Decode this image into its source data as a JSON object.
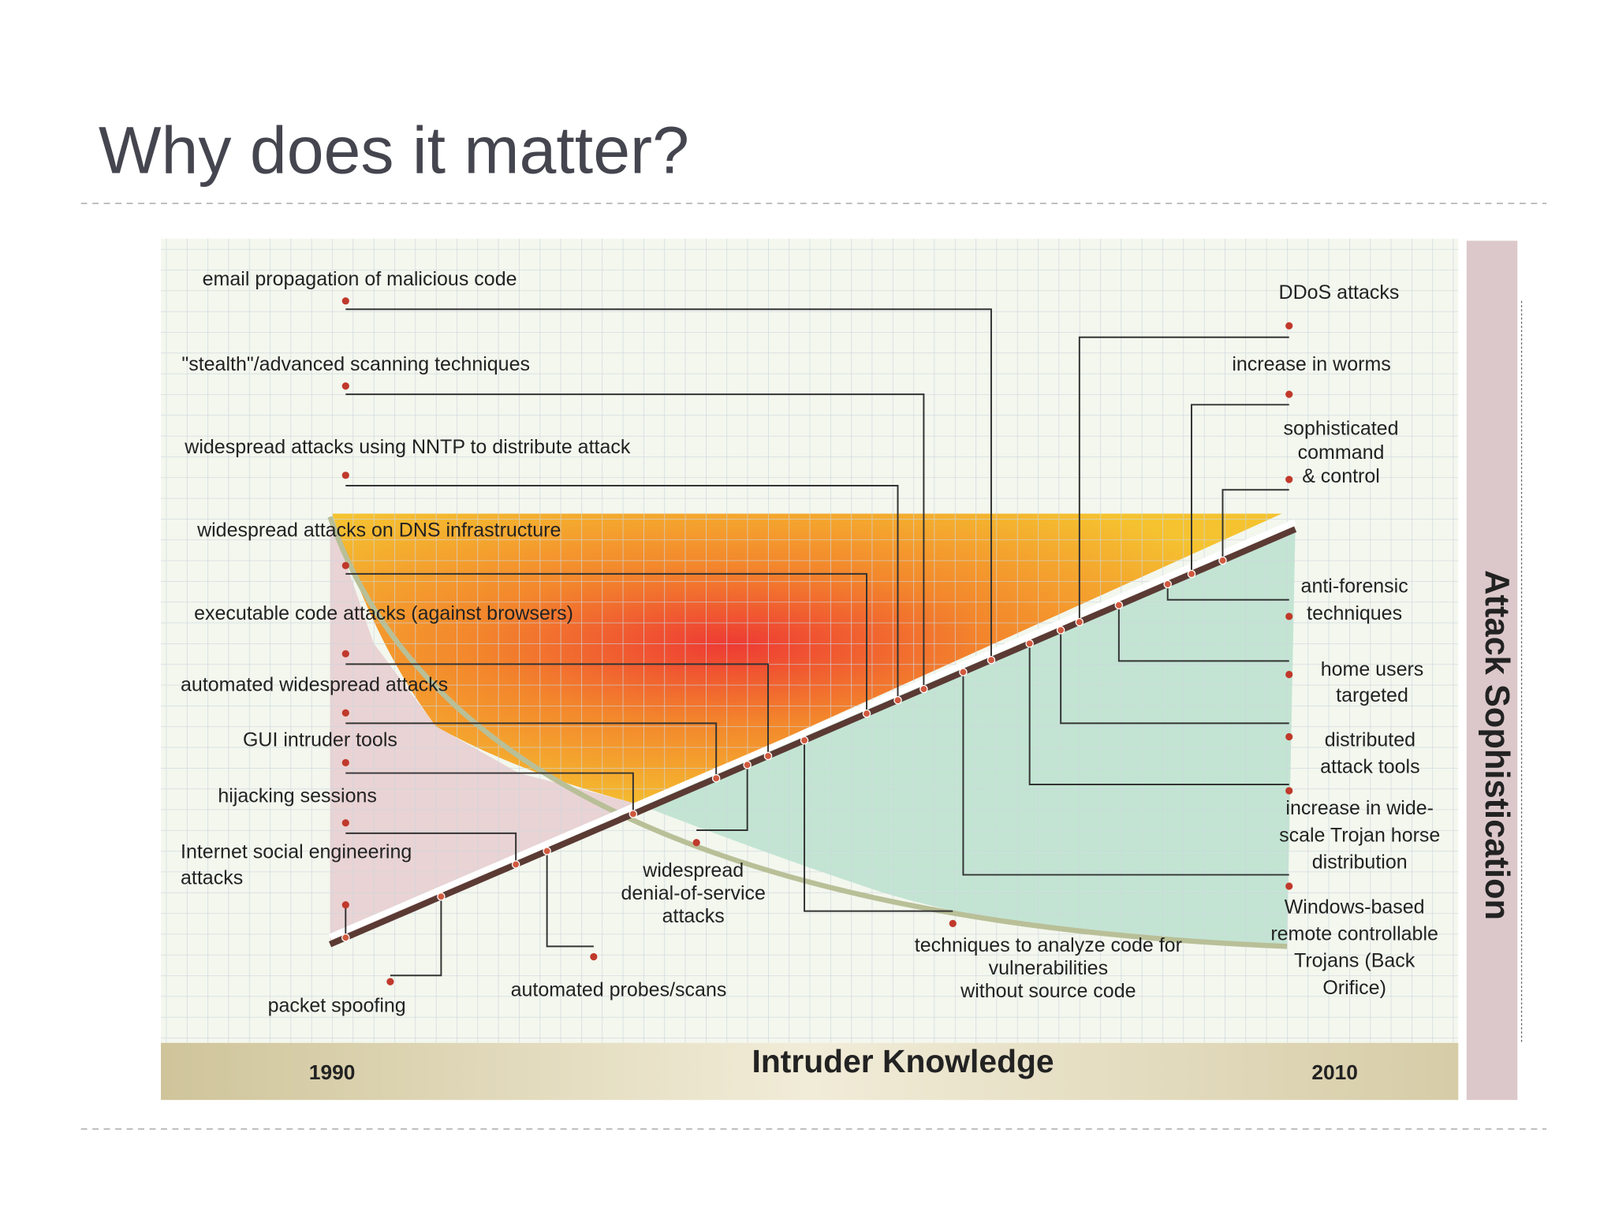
{
  "header": {
    "title": "Why does it matter?"
  },
  "diagram": {
    "left_labels": [
      {
        "lines": [
          "email propagation of malicious code"
        ]
      },
      {
        "lines": [
          "\"stealth\"/advanced scanning techniques"
        ]
      },
      {
        "lines": [
          "widespread attacks using NNTP  to distribute attack"
        ]
      },
      {
        "lines": [
          "widespread attacks on DNS  infrastructure"
        ]
      },
      {
        "lines": [
          "executable code attacks (against browsers)"
        ]
      },
      {
        "lines": [
          "automated widespread attacks"
        ]
      },
      {
        "lines": [
          "GUI intruder tools"
        ]
      },
      {
        "lines": [
          "hijacking sessions"
        ]
      },
      {
        "lines": [
          "Internet social engineering",
          "attacks"
        ]
      }
    ],
    "bottom_labels": [
      {
        "lines": [
          "packet spoofing"
        ]
      },
      {
        "lines": [
          "automated probes/scans"
        ]
      },
      {
        "lines": [
          "widespread",
          "denial-of-service",
          "attacks"
        ]
      },
      {
        "lines": [
          "techniques to analyze code for",
          "vulnerabilities",
          "without source code"
        ]
      }
    ],
    "right_labels": [
      {
        "lines": [
          "DDoS attacks"
        ]
      },
      {
        "lines": [
          "increase in worms"
        ]
      },
      {
        "lines": [
          "sophisticated",
          "command",
          "& control"
        ]
      },
      {
        "lines": [
          "anti-forensic",
          "techniques"
        ]
      },
      {
        "lines": [
          "home users",
          "targeted"
        ]
      },
      {
        "lines": [
          "distributed",
          "attack tools"
        ]
      },
      {
        "lines": [
          "increase in wide-",
          "scale Trojan horse",
          "distribution"
        ]
      },
      {
        "lines": [
          "Windows-based",
          "remote controllable",
          "Trojans (Back",
          "Orifice)"
        ]
      }
    ],
    "x_axis": {
      "label": "Intruder Knowledge",
      "start": "1990",
      "end": "2010"
    },
    "y_axis": {
      "label": "Attack Sophistication"
    }
  }
}
